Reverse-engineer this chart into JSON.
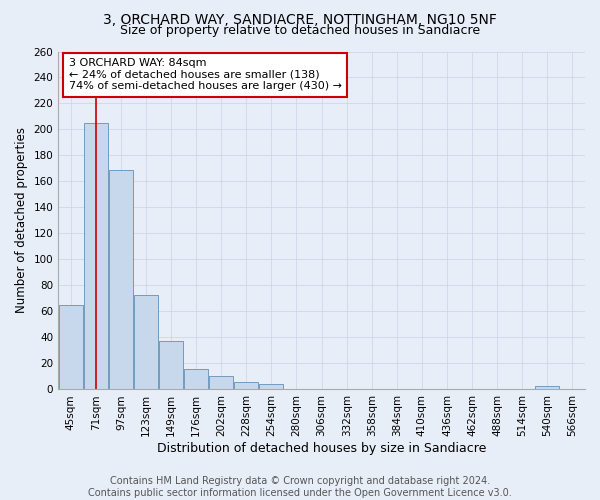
{
  "title": "3, ORCHARD WAY, SANDIACRE, NOTTINGHAM, NG10 5NF",
  "subtitle": "Size of property relative to detached houses in Sandiacre",
  "xlabel": "Distribution of detached houses by size in Sandiacre",
  "ylabel": "Number of detached properties",
  "footer_line1": "Contains HM Land Registry data © Crown copyright and database right 2024.",
  "footer_line2": "Contains public sector information licensed under the Open Government Licence v3.0.",
  "categories": [
    "45sqm",
    "71sqm",
    "97sqm",
    "123sqm",
    "149sqm",
    "176sqm",
    "202sqm",
    "228sqm",
    "254sqm",
    "280sqm",
    "306sqm",
    "332sqm",
    "358sqm",
    "384sqm",
    "410sqm",
    "436sqm",
    "462sqm",
    "488sqm",
    "514sqm",
    "540sqm",
    "566sqm"
  ],
  "values": [
    65,
    205,
    169,
    73,
    37,
    16,
    10,
    6,
    4,
    0,
    0,
    0,
    0,
    0,
    0,
    0,
    0,
    0,
    0,
    3,
    0
  ],
  "bar_color": "#c8d8ec",
  "bar_edge_color": "#6090b8",
  "grid_color": "#c8d4e4",
  "background_color": "#e8eef8",
  "annotation_box_text": "3 ORCHARD WAY: 84sqm\n← 24% of detached houses are smaller (138)\n74% of semi-detached houses are larger (430) →",
  "annotation_box_color": "#ffffff",
  "annotation_box_edge_color": "#cc0000",
  "annotation_text_color": "#000000",
  "vline_x": 1,
  "vline_color": "#cc0000",
  "ylim": [
    0,
    260
  ],
  "yticks": [
    0,
    20,
    40,
    60,
    80,
    100,
    120,
    140,
    160,
    180,
    200,
    220,
    240,
    260
  ],
  "title_fontsize": 10,
  "subtitle_fontsize": 9,
  "xlabel_fontsize": 9,
  "ylabel_fontsize": 8.5,
  "tick_fontsize": 7.5,
  "annotation_fontsize": 8,
  "footer_fontsize": 7
}
